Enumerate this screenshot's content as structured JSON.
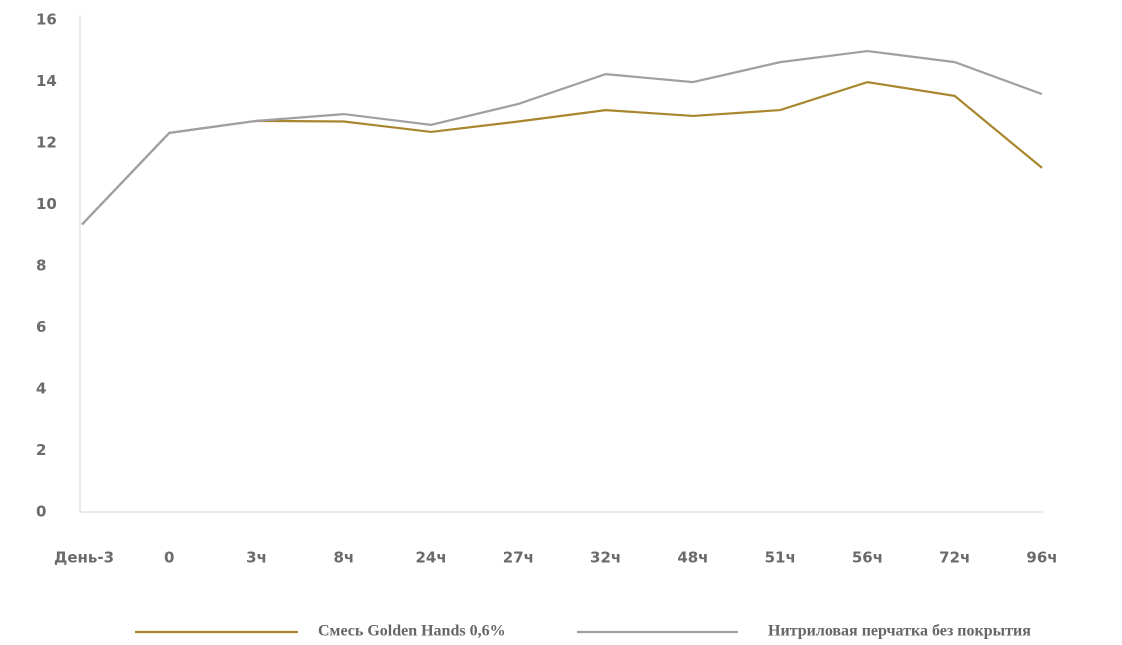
{
  "chart_data": {
    "type": "line",
    "categories": [
      "День-3",
      "0",
      "3ч",
      "8ч",
      "24ч",
      "27ч",
      "32ч",
      "48ч",
      "51ч",
      "56ч",
      "72ч",
      "96ч"
    ],
    "series": [
      {
        "name": "Смесь Golden Hands 0,6%",
        "color": "#a8862e",
        "values": [
          9.35,
          12.33,
          12.72,
          12.7,
          12.36,
          12.7,
          13.07,
          12.88,
          13.07,
          13.98,
          13.53,
          11.19
        ]
      },
      {
        "name": "Нитриловая перчатка без покрытия",
        "color": "#a0a0a4",
        "values": [
          9.35,
          12.33,
          12.72,
          12.94,
          12.59,
          13.27,
          14.24,
          13.98,
          14.63,
          14.99,
          14.63,
          13.59
        ]
      }
    ],
    "ylim": [
      0,
      16
    ],
    "yticks": [
      0,
      2,
      4,
      6,
      8,
      10,
      12,
      14,
      16
    ],
    "grid": false
  }
}
